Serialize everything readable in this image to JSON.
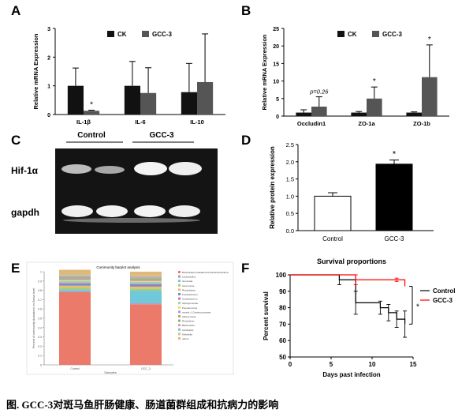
{
  "panels": {
    "A": "A",
    "B": "B",
    "C": "C",
    "D": "D",
    "E": "E",
    "F": "F"
  },
  "colors": {
    "ck": "#111111",
    "gcc3": "#555555",
    "control_line": "#000000",
    "gcc3_line": "#ff0000"
  },
  "chart_data": [
    {
      "id": "A",
      "type": "bar",
      "ylabel": "Relative mRNA Expression",
      "ylim": [
        0,
        3
      ],
      "yticks": [
        "0",
        "1",
        "2",
        "3"
      ],
      "categories": [
        "IL-1β",
        "IL-6",
        "IL-10"
      ],
      "legend": [
        "CK",
        "GCC-3"
      ],
      "series": [
        {
          "name": "CK",
          "values": [
            1.0,
            1.0,
            0.78
          ],
          "errors": [
            0.62,
            0.85,
            1.0
          ]
        },
        {
          "name": "GCC-3",
          "values": [
            0.13,
            0.75,
            1.13
          ],
          "errors": [
            0.02,
            0.88,
            1.68
          ]
        }
      ],
      "annotations": [
        {
          "category": "IL-1β",
          "series": "GCC-3",
          "text": "*"
        }
      ]
    },
    {
      "id": "B",
      "type": "bar",
      "ylabel": "Relative mRNA Expression",
      "ylim": [
        0,
        25
      ],
      "yticks": [
        "0",
        "5",
        "10",
        "15",
        "20",
        "25"
      ],
      "categories": [
        "Occludin1",
        "ZO-1a",
        "ZO-1b"
      ],
      "legend": [
        "CK",
        "GCC-3"
      ],
      "series": [
        {
          "name": "CK",
          "values": [
            1.0,
            1.0,
            1.0
          ],
          "errors": [
            0.8,
            0.3,
            0.2
          ]
        },
        {
          "name": "GCC-3",
          "values": [
            2.7,
            5.0,
            11.1
          ],
          "errors": [
            2.8,
            3.3,
            9.2
          ]
        }
      ],
      "annotations": [
        {
          "category": "Occludin1",
          "series": "GCC-3",
          "text": "p=0.26"
        },
        {
          "category": "ZO-1a",
          "series": "GCC-3",
          "text": "*"
        },
        {
          "category": "ZO-1b",
          "series": "GCC-3",
          "text": "*"
        }
      ]
    },
    {
      "id": "D",
      "type": "bar",
      "ylabel": "Relative protein expression",
      "ylim": [
        0,
        2.5
      ],
      "yticks": [
        "0.0",
        "0.5",
        "1.0",
        "1.5",
        "2.0",
        "2.5"
      ],
      "categories": [
        "Control",
        "GCC-3"
      ],
      "values": [
        1.0,
        1.93
      ],
      "errors": [
        0.1,
        0.12
      ],
      "annotations": [
        {
          "category": "GCC-3",
          "text": "*"
        }
      ]
    },
    {
      "id": "E",
      "type": "bar",
      "title": "Community barplot analysis",
      "categories": [
        "Control",
        "GCC_3"
      ],
      "xlabel": "Samples",
      "ylabel": "Percent of community abundance on Genus level",
      "ylim": [
        0,
        1
      ],
      "yticks": [
        "0",
        "0.1",
        "0.2",
        "0.3",
        "0.4",
        "0.5",
        "0.6",
        "0.7",
        "0.8",
        "0.9",
        "1"
      ],
      "legend": [
        "Burkholderia-Caballeronia-Paraburkholderia",
        "Lactobacillus",
        "Gemmata",
        "Aeromonas",
        "Rhodobacter",
        "Fusobacterium",
        "Cetobacterium",
        "Sphingomonas",
        "Pseudomonas",
        "norank_f_Cerasicoccaceae",
        "Akkermansia",
        "Rhodoferax",
        "Bacteroides",
        "Citrobacter",
        "Klebsiella",
        "others"
      ],
      "series": [
        {
          "name": "Burkholderia-Caballeronia-Paraburkholderia",
          "values": [
            0.78,
            0.65
          ]
        },
        {
          "name": "Lactobacillus",
          "values": [
            0.01,
            0.01
          ]
        },
        {
          "name": "Gemmata",
          "values": [
            0.02,
            0.14
          ]
        },
        {
          "name": "Aeromonas",
          "values": [
            0.02,
            0.02
          ]
        },
        {
          "name": "Rhodobacter",
          "values": [
            0.02,
            0.02
          ]
        },
        {
          "name": "Fusobacterium",
          "values": [
            0.02,
            0.02
          ]
        },
        {
          "name": "Cetobacterium",
          "values": [
            0.01,
            0.01
          ]
        },
        {
          "name": "Sphingomonas",
          "values": [
            0.02,
            0.02
          ]
        },
        {
          "name": "Pseudomonas",
          "values": [
            0.01,
            0.01
          ]
        },
        {
          "name": "norank_f_Cerasicoccaceae",
          "values": [
            0.01,
            0.01
          ]
        },
        {
          "name": "Akkermansia",
          "values": [
            0.01,
            0.01
          ]
        },
        {
          "name": "Rhodoferax",
          "values": [
            0.01,
            0.01
          ]
        },
        {
          "name": "Bacteroides",
          "values": [
            0.01,
            0.01
          ]
        },
        {
          "name": "Citrobacter",
          "values": [
            0.01,
            0.01
          ]
        },
        {
          "name": "Klebsiella",
          "values": [
            0.01,
            0.01
          ]
        },
        {
          "name": "others",
          "values": [
            0.05,
            0.04
          ]
        }
      ],
      "colors": [
        "#ec7a6b",
        "#b98ebf",
        "#71c8d8",
        "#a9cf6a",
        "#f3b96c",
        "#6f8fc8",
        "#d86bb3",
        "#99d5b6",
        "#f6d36b",
        "#a0a0d8",
        "#c3a06e",
        "#79b879",
        "#e99b9b",
        "#8fb8e0",
        "#d6c27a",
        "#e0b87a"
      ]
    },
    {
      "id": "F",
      "type": "line",
      "title": "Survival proportions",
      "xlabel": "Days past infection",
      "ylabel": "Percent survival",
      "xlim": [
        0,
        15
      ],
      "ylim": [
        50,
        100
      ],
      "xticks": [
        "0",
        "5",
        "10",
        "15"
      ],
      "yticks": [
        "50",
        "60",
        "70",
        "80",
        "90",
        "100"
      ],
      "series": [
        {
          "name": "Control",
          "x": [
            0,
            6,
            8,
            11,
            12,
            13,
            14
          ],
          "y": [
            100,
            97,
            83,
            80,
            77,
            73,
            70
          ],
          "errors": [
            0,
            3,
            7,
            4,
            5,
            5,
            8
          ]
        },
        {
          "name": "GCC-3",
          "x": [
            0,
            8,
            13,
            14
          ],
          "y": [
            100,
            97,
            97,
            93
          ],
          "errors": [
            0,
            3,
            1,
            0
          ]
        }
      ],
      "annotations": [
        {
          "text": "*"
        }
      ]
    }
  ],
  "panel_C": {
    "groups": [
      "Control",
      "GCC-3"
    ],
    "rows": [
      "Hif-1α",
      "gapdh"
    ]
  },
  "caption": "图. GCC-3对斑马鱼肝肠健康、肠道菌群组成和抗病力的影响"
}
